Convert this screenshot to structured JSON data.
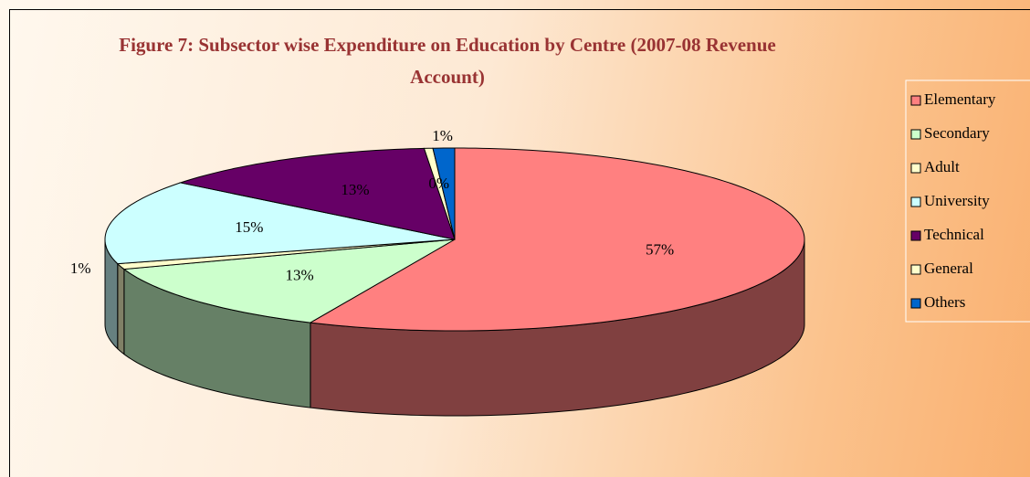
{
  "chart_data": {
    "type": "pie3d",
    "title": "Figure 7: Subsector wise Expenditure on Education by Centre (2007-08 Revenue Account)",
    "categories": [
      "Elementary",
      "Secondary",
      "Adult",
      "University",
      "Technical",
      "General",
      "Others"
    ],
    "values": [
      57,
      13,
      1,
      15,
      13,
      0.4,
      1
    ],
    "value_labels": [
      "57%",
      "13%",
      "1%",
      "15%",
      "13%",
      "0%",
      "1%"
    ],
    "colors": [
      "#ff8080",
      "#ccffcc",
      "#ffffcc",
      "#ccffff",
      "#660066",
      "#ffffcc",
      "#0066cc"
    ],
    "legend": "right"
  }
}
